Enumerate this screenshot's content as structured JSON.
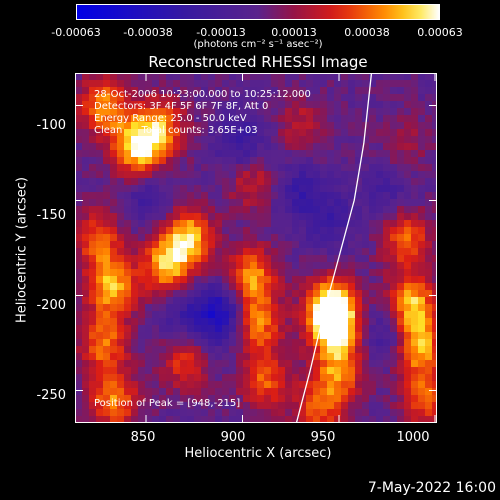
{
  "colorbar": {
    "ticks": [
      "-0.00063",
      "-0.00038",
      "-0.00013",
      "0.00013",
      "0.00038",
      "0.00063"
    ],
    "unit_label": "(photons cm⁻² s⁻¹ asec⁻²)"
  },
  "chart_data": {
    "type": "heatmap",
    "title": "Reconstructed RHESSI Image",
    "xlabel": "Heliocentric X (arcsec)",
    "ylabel": "Heliocentric Y (arcsec)",
    "xlim": [
      813,
      1001
    ],
    "ylim": [
      -267,
      -83
    ],
    "x_ticks": [
      "850",
      "900",
      "950",
      "1000"
    ],
    "y_ticks": [
      "-100",
      "-150",
      "-200",
      "-250"
    ],
    "value_range": [
      -0.00063,
      0.00063
    ],
    "colormap": "blue-purple-red-yellow-white",
    "limb_curve": [
      [
        928,
        -267
      ],
      [
        935,
        -240
      ],
      [
        942,
        -210
      ],
      [
        950,
        -180
      ],
      [
        958,
        -150
      ],
      [
        963,
        -120
      ],
      [
        967,
        -83
      ]
    ],
    "sources": [
      {
        "x": 828,
        "y": -100,
        "v": 0.00045
      },
      {
        "x": 845,
        "y": -122,
        "v": 0.00058
      },
      {
        "x": 858,
        "y": -112,
        "v": 0.0004
      },
      {
        "x": 825,
        "y": -170,
        "v": 0.00035
      },
      {
        "x": 832,
        "y": -195,
        "v": 0.0005
      },
      {
        "x": 828,
        "y": -225,
        "v": 0.0004
      },
      {
        "x": 833,
        "y": -255,
        "v": 0.00042
      },
      {
        "x": 860,
        "y": -185,
        "v": 0.00048
      },
      {
        "x": 872,
        "y": -170,
        "v": 0.00052
      },
      {
        "x": 870,
        "y": -235,
        "v": 0.0003
      },
      {
        "x": 905,
        "y": -190,
        "v": 0.00045
      },
      {
        "x": 908,
        "y": -215,
        "v": 0.0004
      },
      {
        "x": 912,
        "y": -245,
        "v": 0.00035
      },
      {
        "x": 945,
        "y": -205,
        "v": 0.00048
      },
      {
        "x": 948,
        "y": -215,
        "v": 0.00063
      },
      {
        "x": 950,
        "y": -240,
        "v": 0.0004
      },
      {
        "x": 940,
        "y": -260,
        "v": 0.00035
      },
      {
        "x": 985,
        "y": -170,
        "v": 0.00038
      },
      {
        "x": 988,
        "y": -205,
        "v": 0.00052
      },
      {
        "x": 992,
        "y": -228,
        "v": 0.00046
      },
      {
        "x": 995,
        "y": -255,
        "v": 0.00035
      },
      {
        "x": 905,
        "y": -140,
        "v": 0.00025
      },
      {
        "x": 930,
        "y": -110,
        "v": 0.0002
      },
      {
        "x": 985,
        "y": -120,
        "v": 0.00015
      }
    ],
    "voids": [
      {
        "x": 888,
        "y": -210,
        "v": -0.00045
      },
      {
        "x": 900,
        "y": -120,
        "v": -0.00025
      },
      {
        "x": 945,
        "y": -160,
        "v": -0.0002
      },
      {
        "x": 930,
        "y": -145,
        "v": -0.00022
      },
      {
        "x": 850,
        "y": -150,
        "v": -0.00018
      },
      {
        "x": 868,
        "y": -210,
        "v": -0.0002
      },
      {
        "x": 975,
        "y": -220,
        "v": -0.00022
      },
      {
        "x": 975,
        "y": -145,
        "v": -0.00015
      }
    ]
  },
  "info": {
    "line1": "28-Oct-2006 10:23:00.000 to 10:25:12.000",
    "line2": "Detectors: 3F 4F 5F 6F 7F 8F, Att 0",
    "line3": "Energy Range: 25.0 - 50.0 keV",
    "line4": "Clean      Total counts: 3.65E+03",
    "peak": "Position of Peak = [948,-215]"
  },
  "footer_date": "7-May-2022 16:00"
}
